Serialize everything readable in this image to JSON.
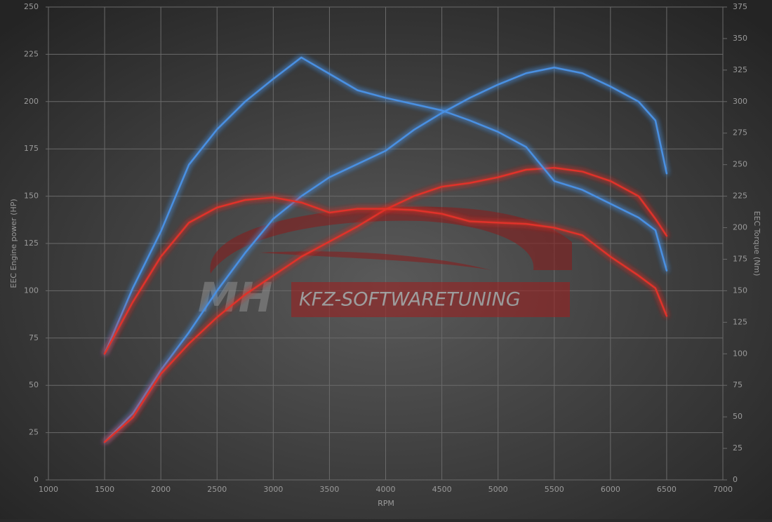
{
  "chart_data": {
    "type": "line",
    "x_label": "RPM",
    "y_label": "EEC Engine power (HP)",
    "y2_label": "EEC Torque (Nm)",
    "watermark": {
      "logo": "MH",
      "text": "KFZ-SOFTWARETUNING"
    },
    "x": [
      1500,
      1750,
      2000,
      2250,
      2500,
      2750,
      3000,
      3250,
      3500,
      3750,
      4000,
      4250,
      4500,
      4750,
      5000,
      5250,
      5500,
      5750,
      6000,
      6250,
      6400,
      6500
    ],
    "series": [
      {
        "color": "#4a90e2",
        "axis": "y",
        "values": [
          20,
          35,
          58,
          78,
          100,
          120,
          138,
          150,
          160,
          167,
          174,
          185,
          194,
          202,
          209,
          215,
          218,
          215,
          208,
          200,
          190,
          162
        ]
      },
      {
        "color": "#e0302c",
        "axis": "y",
        "values": [
          20,
          33,
          56,
          72,
          86,
          98,
          108,
          118,
          126,
          134,
          143,
          150,
          155,
          157,
          160,
          164,
          165,
          163,
          158,
          150,
          138,
          129
        ]
      },
      {
        "color": "#4a90e2",
        "axis": "y2",
        "values": [
          100,
          152,
          197,
          250,
          278,
          300,
          318,
          335,
          322,
          309,
          303,
          298,
          293,
          285,
          276,
          264,
          237,
          230,
          219,
          208,
          198,
          166
        ]
      },
      {
        "color": "#e0302c",
        "axis": "y2",
        "values": [
          100,
          141,
          177,
          204,
          216,
          222,
          224,
          220,
          212,
          215,
          215,
          214,
          211,
          205,
          204,
          203,
          200,
          194,
          177,
          162,
          152,
          130
        ]
      }
    ],
    "xlim": [
      1000,
      7000
    ],
    "xticks": [
      1000,
      1500,
      2000,
      2500,
      3000,
      3500,
      4000,
      4500,
      5000,
      5500,
      6000,
      6500,
      7000
    ],
    "ylim": [
      0,
      250
    ],
    "yticks": [
      0,
      25,
      50,
      75,
      100,
      125,
      150,
      175,
      200,
      225,
      250
    ],
    "y2lim": [
      0,
      375
    ],
    "y2ticks": [
      0,
      25,
      50,
      75,
      100,
      125,
      150,
      175,
      200,
      225,
      250,
      275,
      300,
      325,
      350,
      375
    ],
    "grid": true
  }
}
